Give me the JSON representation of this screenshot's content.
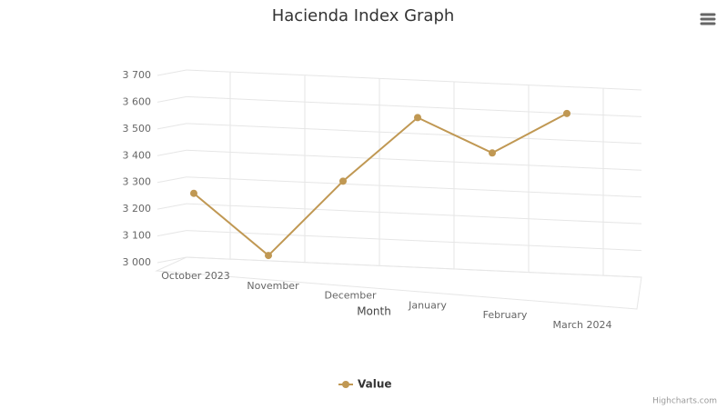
{
  "chart_data": {
    "type": "line",
    "title": "Hacienda Index Graph",
    "x_label": "Month",
    "categories": [
      "October 2023",
      "November",
      "December",
      "January",
      "February",
      "March 2024"
    ],
    "series": [
      {
        "name": "Value",
        "color": "#c09853",
        "values": [
          3240,
          3020,
          3310,
          3560,
          3440,
          3600
        ]
      }
    ],
    "ylim": [
      3000,
      3700
    ],
    "yticks": [
      {
        "value": 3000,
        "label": "3 000"
      },
      {
        "value": 3100,
        "label": "3 100"
      },
      {
        "value": 3200,
        "label": "3 200"
      },
      {
        "value": 3300,
        "label": "3 300"
      },
      {
        "value": 3400,
        "label": "3 400"
      },
      {
        "value": 3500,
        "label": "3 500"
      },
      {
        "value": 3600,
        "label": "3 600"
      },
      {
        "value": 3700,
        "label": "3 700"
      }
    ],
    "grid": true,
    "credits": "Highcharts.com"
  }
}
